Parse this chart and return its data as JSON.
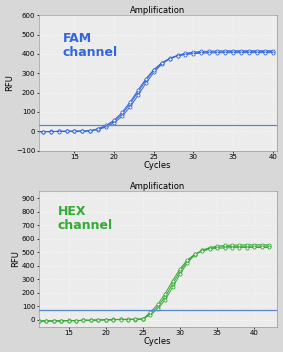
{
  "top_title": "Amplification",
  "bottom_title": "Amplification",
  "fam_label": "FAM\nchannel",
  "hex_label": "HEX\nchannel",
  "fam_color": "#3366dd",
  "hex_color": "#33aa33",
  "threshold_color_fam": "#5588cc",
  "threshold_color_hex": "#5588cc",
  "fam_threshold": 30,
  "hex_threshold": 75,
  "fam_ylim": [
    -100,
    600
  ],
  "hex_ylim": [
    -50,
    950
  ],
  "fam_yticks": [
    -100,
    0,
    100,
    200,
    300,
    400,
    500,
    600
  ],
  "hex_yticks": [
    0,
    100,
    200,
    300,
    400,
    500,
    600,
    700,
    800,
    900
  ],
  "fam_xlim": [
    10.5,
    40.5
  ],
  "hex_xlim": [
    11,
    43
  ],
  "fam_xticks": [
    15,
    20,
    25,
    30,
    35,
    40
  ],
  "hex_xticks": [
    15,
    20,
    25,
    30,
    35,
    40
  ],
  "xlabel": "Cycles",
  "ylabel": "RFU",
  "bg_color": "#ececec",
  "fig_color": "#d8d8d8",
  "title_fontsize": 6,
  "tick_fontsize": 5,
  "axis_label_fontsize": 6,
  "channel_fontsize": 9
}
